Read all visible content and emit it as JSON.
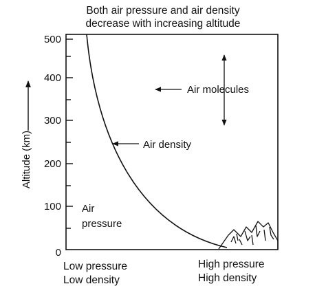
{
  "title": {
    "line1": "Both air pressure and air density",
    "line2": "decrease with increasing altitude"
  },
  "axis": {
    "ylabel": "Altitude (km)",
    "ticks": [
      "500",
      "400",
      "300",
      "200",
      "100",
      "0"
    ]
  },
  "labels": {
    "air_molecules": "Air molecules",
    "air_density": "Air density",
    "air_pressure_line1": "Air",
    "air_pressure_line2": "pressure"
  },
  "bottom": {
    "left_line1": "Low pressure",
    "left_line2": "Low density",
    "right_line1": "High pressure",
    "right_line2": "High density"
  },
  "colors": {
    "ink": "#111111",
    "background": "#ffffff"
  },
  "icons": [
    "mountain-icon",
    "double-arrow-icon",
    "arrow-left-icon",
    "arrow-up-icon"
  ]
}
